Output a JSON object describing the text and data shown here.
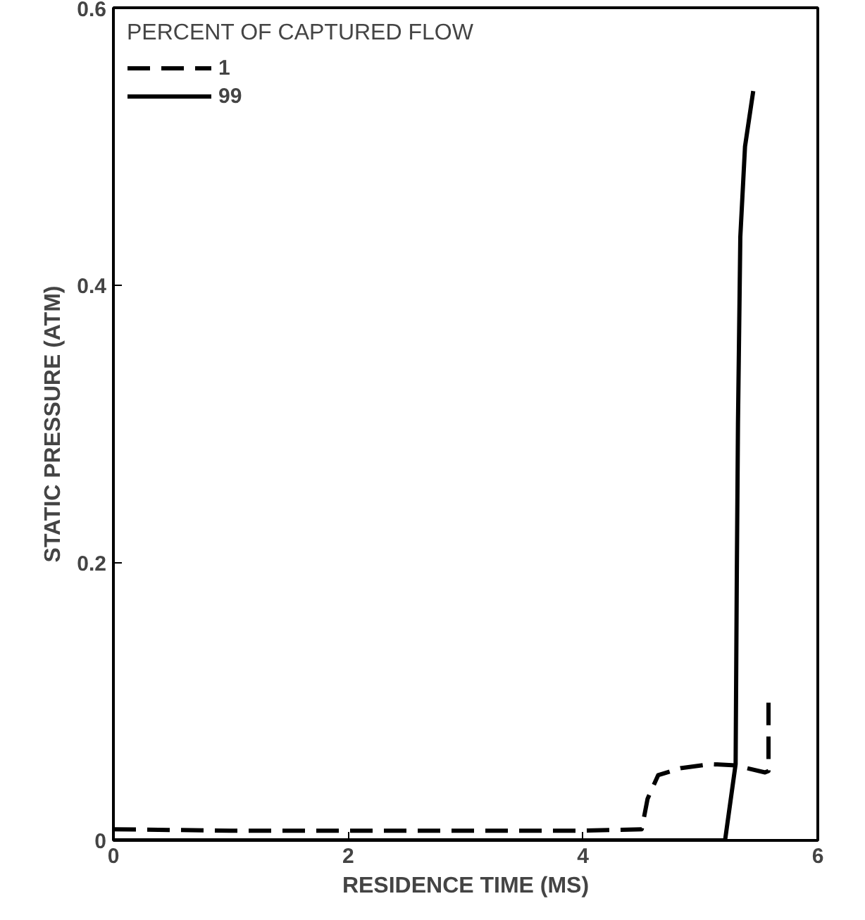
{
  "chart_data": {
    "type": "line",
    "xlabel": "RESIDENCE TIME (MS)",
    "ylabel": "STATIC PRESSURE (ATM)",
    "legend_title": "PERCENT OF CAPTURED FLOW",
    "xlim": [
      0,
      6
    ],
    "ylim": [
      0,
      0.6
    ],
    "xticks": [
      0,
      2,
      4,
      6
    ],
    "yticks": [
      0,
      0.2,
      0.4,
      0.6
    ],
    "grid": false,
    "legend": "top left",
    "series": [
      {
        "name": "1",
        "color": "#000000",
        "line_style": "dashed",
        "x": [
          0,
          1,
          2,
          3,
          4,
          4.5,
          4.55,
          4.64,
          4.83,
          5.09,
          5.3,
          5.55,
          5.58,
          5.58
        ],
        "values": [
          0.008,
          0.007,
          0.007,
          0.007,
          0.007,
          0.008,
          0.03,
          0.047,
          0.052,
          0.055,
          0.054,
          0.049,
          0.05,
          0.1
        ]
      },
      {
        "name": "99",
        "color": "#000000",
        "line_style": "solid",
        "x": [
          0,
          1,
          2,
          3,
          4,
          5,
          5.21,
          5.3,
          5.31,
          5.32,
          5.34,
          5.38,
          5.45
        ],
        "values": [
          0,
          0,
          0,
          0,
          0,
          0,
          0,
          0.055,
          0.19,
          0.3,
          0.435,
          0.5,
          0.54
        ]
      }
    ]
  }
}
